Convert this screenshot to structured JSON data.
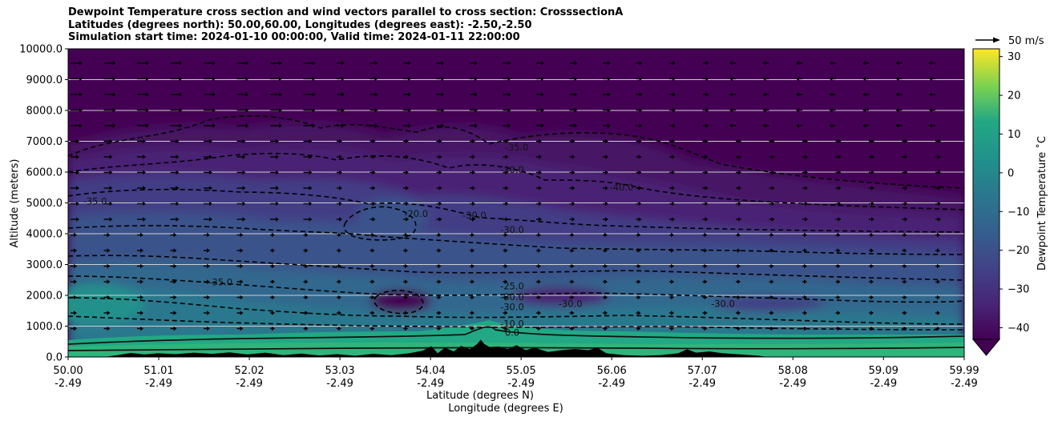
{
  "chart_data": {
    "type": "contourf",
    "title_lines": [
      "Dewpoint Temperature cross section and wind vectors parallel to cross section: CrosssectionA",
      "Latitudes (degrees north): 50.00,60.00, Longitudes (degrees east): -2.50,-2.50",
      "Simulation start time: 2024-01-10 00:00:00, Valid time: 2024-01-11 22:00:00"
    ],
    "xlabel_lines": [
      "Latitude (degrees N)",
      "Longitude (degrees E)"
    ],
    "ylabel": "Altitude (meters)",
    "xlim": [
      50.0,
      59.99
    ],
    "ylim": [
      0,
      10000
    ],
    "x_ticks": [
      {
        "value": 50.0,
        "lat": "50.00",
        "lon": "-2.49"
      },
      {
        "value": 51.01,
        "lat": "51.01",
        "lon": "-2.49"
      },
      {
        "value": 52.02,
        "lat": "52.02",
        "lon": "-2.49"
      },
      {
        "value": 53.03,
        "lat": "53.03",
        "lon": "-2.49"
      },
      {
        "value": 54.04,
        "lat": "54.04",
        "lon": "-2.49"
      },
      {
        "value": 55.05,
        "lat": "55.05",
        "lon": "-2.49"
      },
      {
        "value": 56.06,
        "lat": "56.06",
        "lon": "-2.49"
      },
      {
        "value": 57.07,
        "lat": "57.07",
        "lon": "-2.49"
      },
      {
        "value": 58.08,
        "lat": "58.08",
        "lon": "-2.49"
      },
      {
        "value": 59.09,
        "lat": "59.09",
        "lon": "-2.49"
      },
      {
        "value": 59.99,
        "lat": "59.99",
        "lon": "-2.49"
      }
    ],
    "y_ticks": [
      {
        "value": 0,
        "label": "0.0"
      },
      {
        "value": 1000,
        "label": "1000.0"
      },
      {
        "value": 2000,
        "label": "2000.0"
      },
      {
        "value": 3000,
        "label": "3000.0"
      },
      {
        "value": 4000,
        "label": "4000.0"
      },
      {
        "value": 5000,
        "label": "5000.0"
      },
      {
        "value": 6000,
        "label": "6000.0"
      },
      {
        "value": 7000,
        "label": "7000.0"
      },
      {
        "value": 8000,
        "label": "8000.0"
      },
      {
        "value": 9000,
        "label": "9000.0"
      },
      {
        "value": 10000,
        "label": "10000.0"
      }
    ],
    "grid": "horizontal",
    "colorbar": {
      "label": "Dewpoint Temperature $^\\circ$C",
      "label_display": "Dewpoint Temperature ˚C",
      "colormap": "viridis",
      "range": [
        -43,
        32
      ],
      "extend": "min",
      "ticks": [
        -40,
        -30,
        -20,
        -10,
        0,
        10,
        20,
        30
      ],
      "tick_labels": [
        "−40",
        "−30",
        "−20",
        "−10",
        "0",
        "10",
        "20",
        "30"
      ]
    },
    "quiver_key": {
      "label": "50 m/s",
      "value": 50
    },
    "contour_labels": [
      {
        "text": "-35.0",
        "x": 55.0,
        "y": 6700
      },
      {
        "text": "-30.0",
        "x": 54.95,
        "y": 5980
      },
      {
        "text": "-40.0",
        "x": 56.17,
        "y": 5400
      },
      {
        "text": "-35.0",
        "x": 50.3,
        "y": 4950
      },
      {
        "text": "-20.0",
        "x": 53.88,
        "y": 4550
      },
      {
        "text": "-30.0",
        "x": 54.53,
        "y": 4500
      },
      {
        "text": "-30.0",
        "x": 54.95,
        "y": 4020
      },
      {
        "text": "-35.0",
        "x": 51.7,
        "y": 2330
      },
      {
        "text": "-25.0",
        "x": 54.95,
        "y": 2200
      },
      {
        "text": "-30.0",
        "x": 54.95,
        "y": 1850
      },
      {
        "text": "-30.0",
        "x": 55.6,
        "y": 1620
      },
      {
        "text": "-30.0",
        "x": 57.3,
        "y": 1620
      },
      {
        "text": "-30.0",
        "x": 54.95,
        "y": 1520
      },
      {
        "text": "-10.0",
        "x": 54.95,
        "y": 970
      },
      {
        "text": "0.0",
        "x": 54.95,
        "y": 690
      }
    ],
    "terrain": [
      [
        50.0,
        0
      ],
      [
        50.4,
        0
      ],
      [
        50.55,
        60
      ],
      [
        50.7,
        130
      ],
      [
        50.85,
        80
      ],
      [
        51.0,
        120
      ],
      [
        51.2,
        90
      ],
      [
        51.4,
        140
      ],
      [
        51.6,
        100
      ],
      [
        51.8,
        150
      ],
      [
        52.0,
        80
      ],
      [
        52.2,
        140
      ],
      [
        52.4,
        60
      ],
      [
        52.6,
        110
      ],
      [
        52.8,
        50
      ],
      [
        53.0,
        90
      ],
      [
        53.2,
        40
      ],
      [
        53.4,
        100
      ],
      [
        53.6,
        60
      ],
      [
        53.8,
        120
      ],
      [
        53.95,
        200
      ],
      [
        54.05,
        350
      ],
      [
        54.12,
        120
      ],
      [
        54.2,
        300
      ],
      [
        54.3,
        180
      ],
      [
        54.38,
        360
      ],
      [
        54.48,
        250
      ],
      [
        54.56,
        420
      ],
      [
        54.6,
        560
      ],
      [
        54.64,
        420
      ],
      [
        54.7,
        320
      ],
      [
        54.8,
        340
      ],
      [
        54.9,
        260
      ],
      [
        55.0,
        380
      ],
      [
        55.1,
        220
      ],
      [
        55.2,
        300
      ],
      [
        55.35,
        160
      ],
      [
        55.5,
        220
      ],
      [
        55.65,
        260
      ],
      [
        55.8,
        220
      ],
      [
        55.9,
        300
      ],
      [
        56.0,
        120
      ],
      [
        56.2,
        60
      ],
      [
        56.4,
        40
      ],
      [
        56.6,
        60
      ],
      [
        56.8,
        120
      ],
      [
        56.9,
        250
      ],
      [
        57.0,
        140
      ],
      [
        57.15,
        180
      ],
      [
        57.3,
        120
      ],
      [
        57.5,
        80
      ],
      [
        57.7,
        40
      ],
      [
        57.8,
        0
      ],
      [
        59.99,
        0
      ]
    ]
  }
}
